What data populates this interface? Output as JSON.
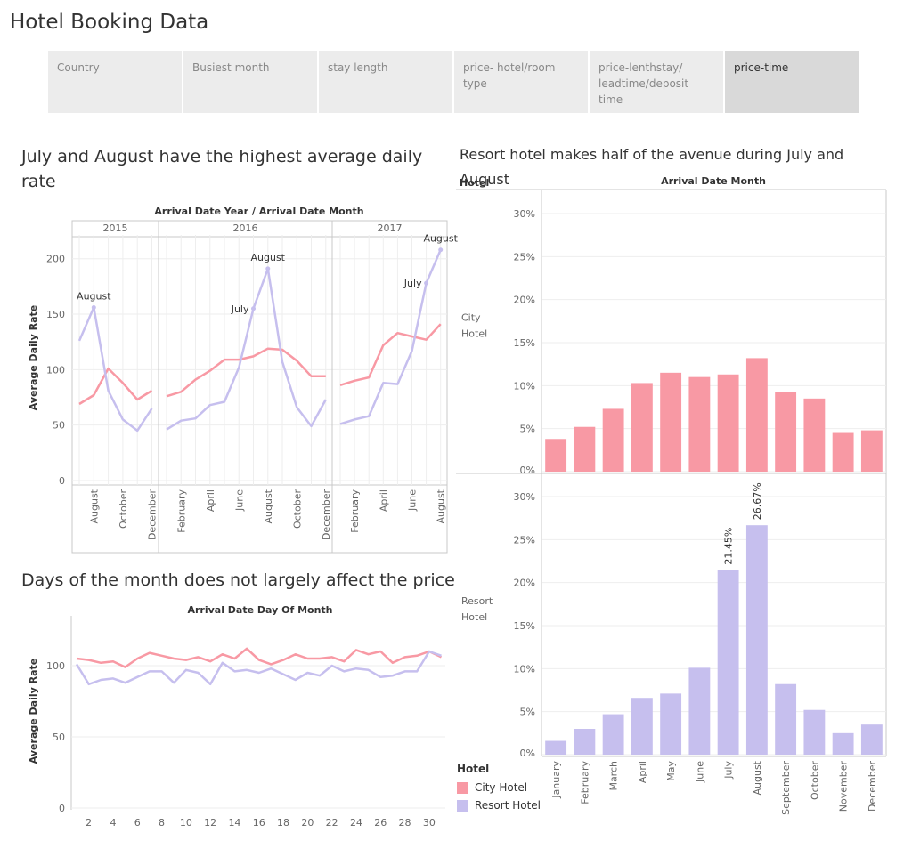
{
  "page": {
    "title": "Hotel Booking Data"
  },
  "tabs": [
    {
      "label": "Country",
      "active": false
    },
    {
      "label": "Busiest month",
      "active": false
    },
    {
      "label": "stay length",
      "active": false
    },
    {
      "label": "price- hotel/room type",
      "active": false
    },
    {
      "label": "price-lenthstay/ leadtime/deposit time",
      "active": false
    },
    {
      "label": "price-time",
      "active": true
    }
  ],
  "colors": {
    "city": "#f899a4",
    "resort": "#c6bfee"
  },
  "legend": {
    "title": "Hotel",
    "items": [
      "City Hotel",
      "Resort Hotel"
    ]
  },
  "chart_data": [
    {
      "type": "line",
      "title": "July and August have the highest average daily rate",
      "header": "Arrival Date Year / Arrival Date Month",
      "ylabel": "Average Daily Rate",
      "ylim": [
        0,
        215
      ],
      "yticks": [
        0,
        50,
        100,
        150,
        200
      ],
      "panels": [
        {
          "year": "2015",
          "months": [
            "July",
            "August",
            "September",
            "October",
            "November",
            "December"
          ],
          "tick_labels": [
            "August",
            "October",
            "December"
          ],
          "city": [
            69,
            77,
            101,
            88,
            73,
            81
          ],
          "resort": [
            126,
            156,
            81,
            55,
            45,
            65
          ],
          "labels": [
            {
              "month": "August",
              "text": "August"
            }
          ]
        },
        {
          "year": "2016",
          "months": [
            "January",
            "February",
            "March",
            "April",
            "May",
            "June",
            "July",
            "August",
            "September",
            "October",
            "November",
            "December"
          ],
          "tick_labels": [
            "February",
            "April",
            "June",
            "August",
            "October",
            "December"
          ],
          "city": [
            76,
            80,
            91,
            99,
            109,
            109,
            112,
            119,
            118,
            108,
            94,
            94
          ],
          "resort": [
            46,
            54,
            56,
            68,
            71,
            102,
            155,
            191,
            107,
            66,
            49,
            73
          ],
          "labels": [
            {
              "month": "July",
              "text": "July"
            },
            {
              "month": "August",
              "text": "August"
            }
          ]
        },
        {
          "year": "2017",
          "months": [
            "January",
            "February",
            "March",
            "April",
            "May",
            "June",
            "July",
            "August"
          ],
          "tick_labels": [
            "February",
            "April",
            "June",
            "August"
          ],
          "city": [
            86,
            90,
            93,
            122,
            133,
            130,
            127,
            141
          ],
          "resort": [
            51,
            55,
            58,
            88,
            87,
            117,
            178,
            208
          ],
          "labels": [
            {
              "month": "July",
              "text": "July"
            },
            {
              "month": "August",
              "text": "August"
            }
          ]
        }
      ]
    },
    {
      "type": "bar",
      "title": "Resort hotel makes half of the avenue during July and August",
      "header": "Arrival Date Month",
      "row_header": "Hotel",
      "categories": [
        "January",
        "February",
        "March",
        "April",
        "May",
        "June",
        "July",
        "August",
        "September",
        "October",
        "November",
        "December"
      ],
      "yticks": [
        0,
        5,
        10,
        15,
        20,
        25,
        30
      ],
      "ytick_labels": [
        "0%",
        "5%",
        "10%",
        "15%",
        "20%",
        "25%",
        "30%"
      ],
      "ylim": [
        0,
        32
      ],
      "series": [
        {
          "name": "City Hotel",
          "label_lines": [
            "City",
            "Hotel"
          ],
          "values": [
            3.8,
            5.2,
            7.3,
            10.3,
            11.5,
            11.0,
            11.3,
            13.2,
            9.3,
            8.5,
            4.6,
            4.8
          ],
          "data_labels": []
        },
        {
          "name": "Resort Hotel",
          "label_lines": [
            "Resort",
            "Hotel"
          ],
          "values": [
            1.6,
            3.0,
            4.7,
            6.6,
            7.1,
            10.1,
            21.45,
            26.67,
            8.2,
            5.2,
            2.5,
            3.5
          ],
          "data_labels": [
            {
              "index": 6,
              "text": "21.45%"
            },
            {
              "index": 7,
              "text": "26.67%"
            }
          ]
        }
      ]
    },
    {
      "type": "line",
      "title": "Days of the month does not largely affect the price",
      "header": "Arrival Date Day Of Month",
      "ylabel": "Average Daily Rate",
      "ylim": [
        0,
        130
      ],
      "yticks": [
        0,
        50,
        100
      ],
      "x": [
        1,
        2,
        3,
        4,
        5,
        6,
        7,
        8,
        9,
        10,
        11,
        12,
        13,
        14,
        15,
        16,
        17,
        18,
        19,
        20,
        21,
        22,
        23,
        24,
        25,
        26,
        27,
        28,
        29,
        30,
        31
      ],
      "xticks": [
        2,
        4,
        6,
        8,
        10,
        12,
        14,
        16,
        18,
        20,
        22,
        24,
        26,
        28,
        30
      ],
      "city": [
        105,
        104,
        102,
        103,
        99,
        105,
        109,
        107,
        105,
        104,
        106,
        103,
        108,
        105,
        112,
        104,
        101,
        104,
        108,
        105,
        105,
        106,
        103,
        111,
        108,
        110,
        102,
        106,
        107,
        110,
        106
      ],
      "resort": [
        101,
        87,
        90,
        91,
        88,
        92,
        96,
        96,
        88,
        97,
        95,
        87,
        102,
        96,
        97,
        95,
        98,
        94,
        90,
        95,
        93,
        100,
        96,
        98,
        97,
        92,
        93,
        96,
        96,
        110,
        107
      ]
    }
  ]
}
